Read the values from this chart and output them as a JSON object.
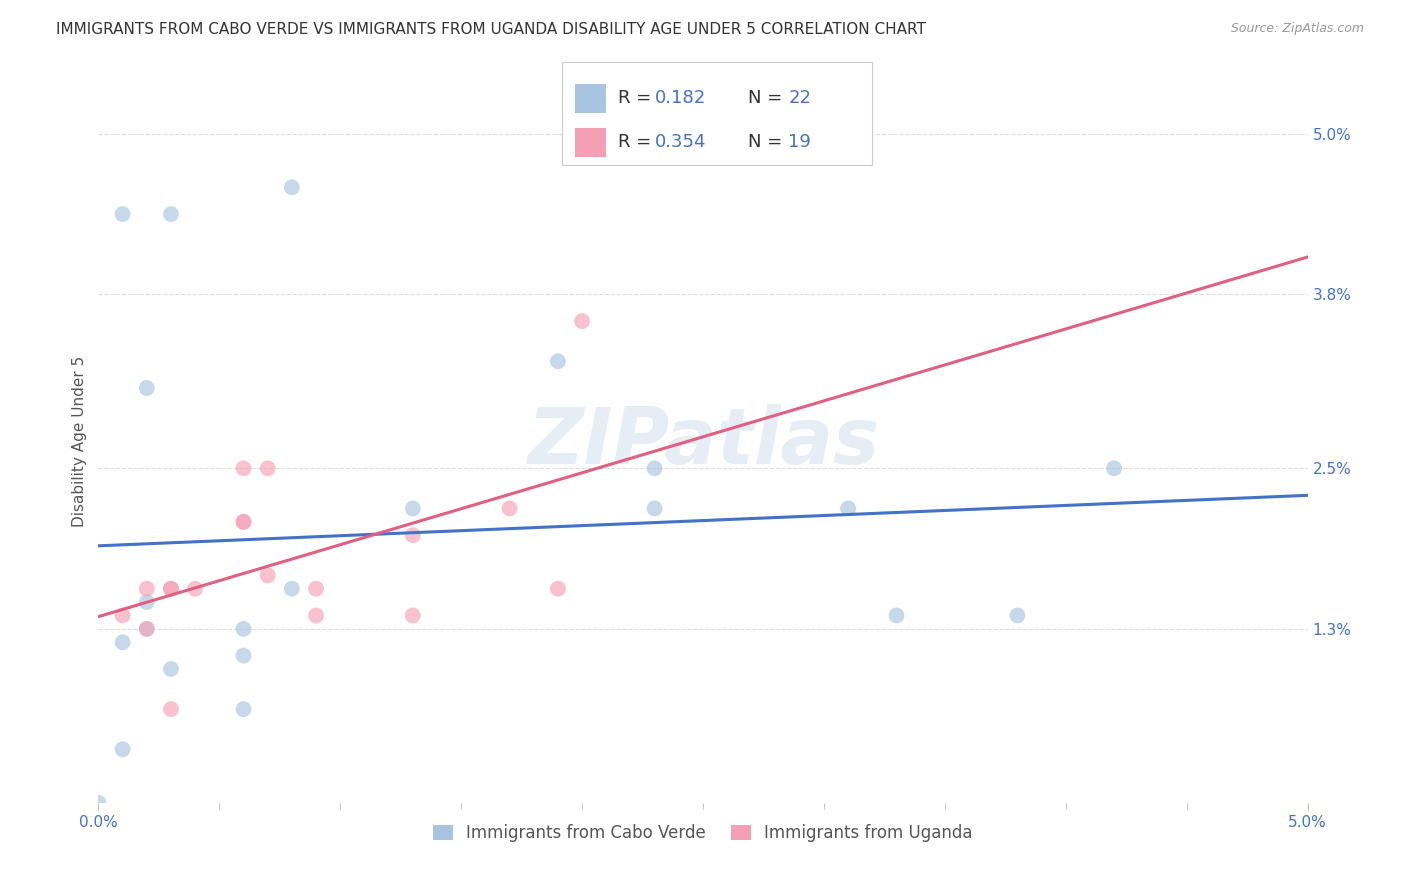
{
  "title": "IMMIGRANTS FROM CABO VERDE VS IMMIGRANTS FROM UGANDA DISABILITY AGE UNDER 5 CORRELATION CHART",
  "source": "Source: ZipAtlas.com",
  "ylabel": "Disability Age Under 5",
  "ytick_labels": [
    "5.0%",
    "3.8%",
    "2.5%",
    "1.3%"
  ],
  "ytick_values": [
    0.05,
    0.038,
    0.025,
    0.013
  ],
  "xmin": 0.0,
  "xmax": 0.05,
  "ymin": 0.0,
  "ymax": 0.054,
  "cabo_verde_color": "#a8c4e0",
  "uganda_color": "#f4a0b4",
  "cabo_verde_line_color": "#4472c4",
  "uganda_line_color": "#e06080",
  "dashed_line_color": "#e0a8b8",
  "legend_cabo_verde_R": "0.182",
  "legend_cabo_verde_N": "22",
  "legend_uganda_R": "0.354",
  "legend_uganda_N": "19",
  "cabo_verde_x": [
    0.001,
    0.003,
    0.008,
    0.002,
    0.019,
    0.031,
    0.002,
    0.013,
    0.008,
    0.002,
    0.001,
    0.023,
    0.006,
    0.006,
    0.003,
    0.001,
    0.042,
    0.023,
    0.006,
    0.033,
    0.038,
    0.0
  ],
  "cabo_verde_y": [
    0.044,
    0.044,
    0.046,
    0.031,
    0.033,
    0.022,
    0.015,
    0.022,
    0.016,
    0.013,
    0.012,
    0.022,
    0.013,
    0.011,
    0.01,
    0.004,
    0.025,
    0.025,
    0.007,
    0.014,
    0.014,
    0.0
  ],
  "uganda_x": [
    0.001,
    0.002,
    0.002,
    0.003,
    0.003,
    0.004,
    0.006,
    0.006,
    0.006,
    0.007,
    0.007,
    0.009,
    0.009,
    0.013,
    0.013,
    0.017,
    0.019,
    0.02,
    0.003
  ],
  "uganda_y": [
    0.014,
    0.016,
    0.013,
    0.016,
    0.016,
    0.016,
    0.021,
    0.021,
    0.025,
    0.017,
    0.025,
    0.016,
    0.014,
    0.02,
    0.014,
    0.022,
    0.016,
    0.036,
    0.007
  ],
  "watermark": "ZIPatlas",
  "background_color": "#ffffff",
  "grid_color": "#dddddd",
  "marker_size": 130,
  "marker_alpha": 0.65,
  "title_fontsize": 11,
  "axis_label_fontsize": 11,
  "tick_fontsize": 11,
  "legend_fontsize": 13
}
